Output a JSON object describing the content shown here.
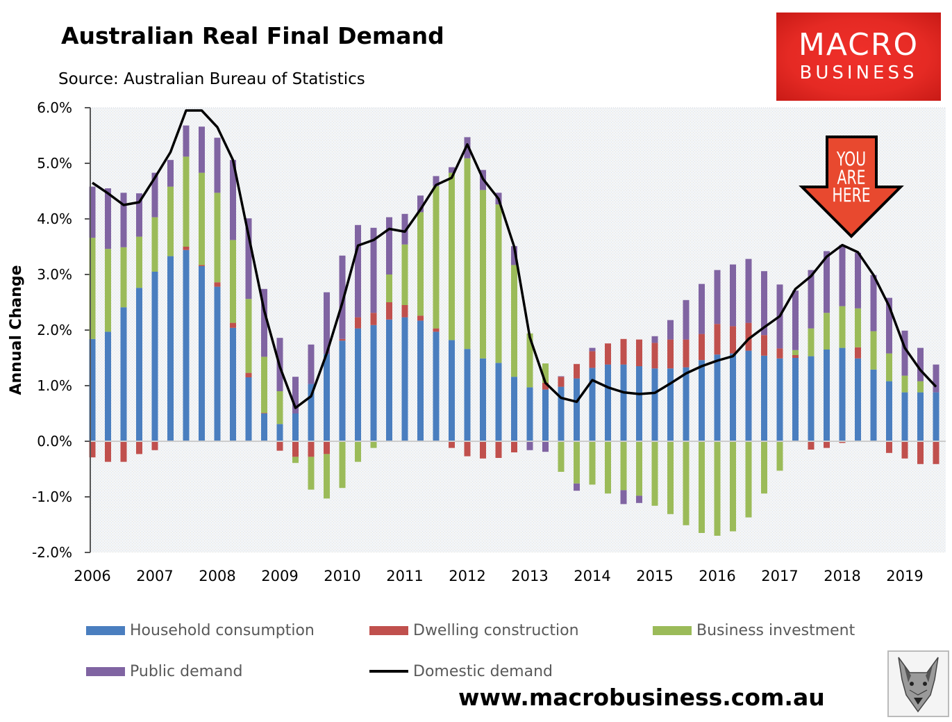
{
  "header": {
    "title": "Australian Real Final Demand",
    "source": "Source: Australian Bureau of Statistics"
  },
  "logo": {
    "line1": "MACRO",
    "line2": "BUSINESS"
  },
  "annotation": {
    "line1": "YOU",
    "line2": "ARE",
    "line3": "HERE",
    "color": "#e8492f",
    "points_to_quarter": "2018Q1"
  },
  "footer": {
    "website": "www.macrobusiness.com.au"
  },
  "colors": {
    "household": "#4a7ebf",
    "dwelling": "#c0504d",
    "business": "#9bbb59",
    "public": "#8064a2",
    "domestic": "#000000"
  },
  "chart_data": {
    "type": "bar",
    "stacked": true,
    "title": "Australian Real Final Demand",
    "xlabel": "",
    "ylabel": "Annual Change",
    "ylim": [
      -2.0,
      6.0
    ],
    "yticks": [
      "6.0%",
      "5.0%",
      "4.0%",
      "3.0%",
      "2.0%",
      "1.0%",
      "0.0%",
      "-1.0%",
      "-2.0%"
    ],
    "ytick_values": [
      6,
      5,
      4,
      3,
      2,
      1,
      0,
      -1,
      -2
    ],
    "xticks": [
      "2006",
      "2007",
      "2008",
      "2009",
      "2010",
      "2011",
      "2012",
      "2013",
      "2014",
      "2015",
      "2016",
      "2017",
      "2018",
      "2019"
    ],
    "x_start": "2006Q1",
    "x_frequency": "quarterly",
    "legend_position": "bottom",
    "grid": false,
    "series": [
      {
        "name": "Household consumption",
        "kind": "bar",
        "values": [
          1.84,
          1.97,
          2.41,
          2.76,
          3.05,
          3.33,
          3.44,
          3.15,
          2.78,
          2.04,
          1.15,
          0.5,
          0.31,
          0.5,
          1.03,
          1.57,
          1.81,
          2.03,
          2.09,
          2.19,
          2.23,
          2.17,
          1.97,
          1.82,
          1.66,
          1.49,
          1.41,
          1.16,
          0.97,
          0.93,
          0.98,
          1.13,
          1.32,
          1.38,
          1.38,
          1.35,
          1.31,
          1.31,
          1.33,
          1.46,
          1.56,
          1.58,
          1.63,
          1.54,
          1.49,
          1.5,
          1.53,
          1.65,
          1.68,
          1.49,
          1.29,
          1.08,
          0.88,
          0.88,
          0.88
        ]
      },
      {
        "name": "Dwelling construction",
        "kind": "bar",
        "values": [
          -0.29,
          -0.37,
          -0.37,
          -0.23,
          -0.16,
          0,
          0.06,
          0.02,
          0.08,
          0.09,
          0.08,
          0.01,
          -0.17,
          -0.28,
          -0.28,
          -0.23,
          0.03,
          0.2,
          0.22,
          0.31,
          0.22,
          0.09,
          0.06,
          -0.12,
          -0.27,
          -0.31,
          -0.3,
          -0.2,
          0,
          0.12,
          0.18,
          0.26,
          0.3,
          0.38,
          0.46,
          0.48,
          0.46,
          0.52,
          0.5,
          0.47,
          0.55,
          0.49,
          0.5,
          0.37,
          0.18,
          0.05,
          -0.15,
          -0.12,
          -0.03,
          0.2,
          0,
          -0.21,
          -0.31,
          -0.41,
          -0.41
        ]
      },
      {
        "name": "Business investment",
        "kind": "bar",
        "values": [
          1.82,
          1.49,
          1.08,
          0.92,
          0.98,
          1.25,
          1.62,
          1.66,
          1.61,
          1.49,
          1.33,
          1.01,
          0.59,
          -0.11,
          -0.59,
          -0.8,
          -0.84,
          -0.37,
          -0.12,
          0.5,
          1.09,
          1.86,
          2.56,
          3.01,
          3.43,
          3.03,
          2.85,
          2.01,
          0.97,
          0.35,
          -0.55,
          -0.76,
          -0.78,
          -0.94,
          -0.88,
          -0.98,
          -1.16,
          -1.31,
          -1.51,
          -1.65,
          -1.7,
          -1.62,
          -1.37,
          -0.94,
          -0.53,
          0.09,
          0.5,
          0.66,
          0.75,
          0.7,
          0.69,
          0.5,
          0.3,
          0.2,
          0
        ]
      },
      {
        "name": "Public demand",
        "kind": "bar",
        "values": [
          0.92,
          1.09,
          0.98,
          0.78,
          0.8,
          0.48,
          0.56,
          0.83,
          0.99,
          1.44,
          1.45,
          1.22,
          0.96,
          0.66,
          0.71,
          1.11,
          1.5,
          1.66,
          1.53,
          1.03,
          0.55,
          0.3,
          0.18,
          0.1,
          0.38,
          0.36,
          0.21,
          0.34,
          -0.16,
          -0.19,
          0.01,
          -0.13,
          0.06,
          0,
          -0.25,
          -0.13,
          0.12,
          0.35,
          0.71,
          0.9,
          0.97,
          1.11,
          1.15,
          1.15,
          1.15,
          1.07,
          1.05,
          1.11,
          1.1,
          1.0,
          1.01,
          1.0,
          0.81,
          0.6,
          0.5
        ]
      },
      {
        "name": "Domestic demand",
        "kind": "line",
        "values": [
          4.65,
          4.46,
          4.25,
          4.3,
          4.74,
          5.2,
          5.95,
          5.95,
          5.65,
          5.06,
          3.7,
          2.35,
          1.34,
          0.6,
          0.81,
          1.58,
          2.49,
          3.52,
          3.62,
          3.82,
          3.77,
          4.17,
          4.61,
          4.74,
          5.34,
          4.72,
          4.36,
          3.5,
          1.87,
          1.05,
          0.78,
          0.71,
          1.1,
          0.97,
          0.88,
          0.85,
          0.87,
          1.04,
          1.22,
          1.35,
          1.45,
          1.53,
          1.84,
          2.05,
          2.25,
          2.74,
          2.97,
          3.32,
          3.53,
          3.4,
          2.99,
          2.43,
          1.68,
          1.28,
          0.98
        ]
      }
    ]
  }
}
